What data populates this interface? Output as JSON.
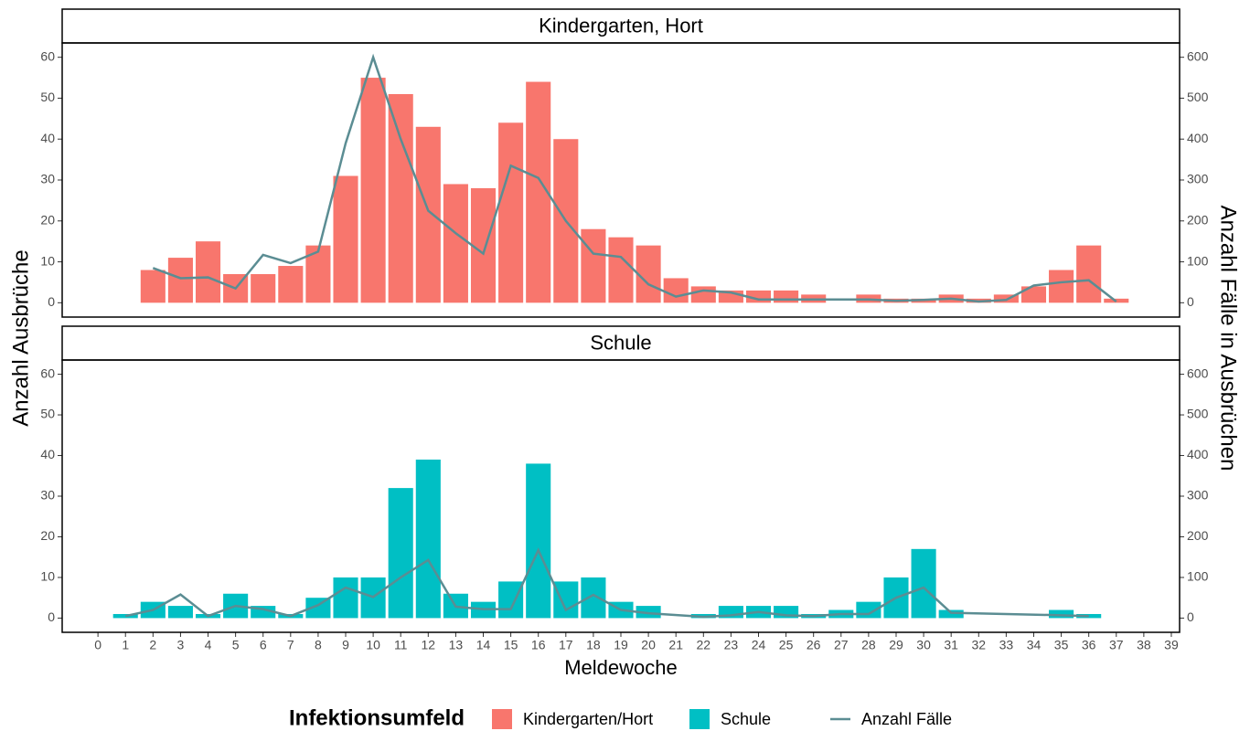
{
  "chart_data": [
    {
      "type": "bar",
      "title": "Kindergarten, Hort",
      "ylabel": "Anzahl Ausbrüche",
      "y2label": "Anzahl Fälle in Ausbrüchen",
      "xlim": [
        -1.3,
        39.3
      ],
      "ylim": [
        -3.5,
        63.5
      ],
      "y2lim": [
        -35,
        635
      ],
      "yticks": [
        0,
        10,
        20,
        30,
        40,
        50,
        60
      ],
      "y2ticks": [
        0,
        100,
        200,
        300,
        400,
        500,
        600
      ],
      "series": [
        {
          "name": "Kindergarten/Hort",
          "type": "bar",
          "color": "#F8766D",
          "x": [
            2,
            3,
            4,
            5,
            6,
            7,
            8,
            9,
            10,
            11,
            12,
            13,
            14,
            15,
            16,
            17,
            18,
            19,
            20,
            21,
            22,
            23,
            24,
            25,
            26,
            28,
            29,
            30,
            31,
            32,
            33,
            34,
            35,
            36,
            37
          ],
          "values": [
            8,
            11,
            15,
            7,
            7,
            9,
            14,
            31,
            55,
            51,
            43,
            29,
            28,
            44,
            54,
            40,
            18,
            16,
            14,
            6,
            4,
            3,
            3,
            3,
            2,
            2,
            1,
            1,
            2,
            1,
            2,
            4,
            8,
            14,
            1
          ]
        },
        {
          "name": "Anzahl Fälle",
          "type": "line",
          "axis": "y2",
          "color": "#5B8D93",
          "x": [
            2,
            3,
            4,
            5,
            6,
            7,
            8,
            9,
            10,
            11,
            12,
            13,
            14,
            15,
            16,
            17,
            18,
            19,
            20,
            21,
            22,
            23,
            24,
            25,
            26,
            28,
            29,
            30,
            31,
            32,
            33,
            34,
            35,
            36,
            37
          ],
          "values": [
            85,
            60,
            62,
            35,
            117,
            97,
            125,
            390,
            600,
            400,
            225,
            170,
            120,
            335,
            305,
            200,
            120,
            112,
            45,
            15,
            30,
            25,
            8,
            8,
            8,
            8,
            5,
            7,
            10,
            3,
            7,
            42,
            50,
            55,
            3
          ]
        }
      ]
    },
    {
      "type": "bar",
      "title": "Schule",
      "xlabel": "Meldewoche",
      "legend_title": "Infektionsumfeld",
      "xlim": [
        -1.3,
        39.3
      ],
      "ylim": [
        -3.5,
        63.5
      ],
      "y2lim": [
        -35,
        635
      ],
      "xticks": [
        0,
        1,
        2,
        3,
        4,
        5,
        6,
        7,
        8,
        9,
        10,
        11,
        12,
        13,
        14,
        15,
        16,
        17,
        18,
        19,
        20,
        21,
        22,
        23,
        24,
        25,
        26,
        27,
        28,
        29,
        30,
        31,
        32,
        33,
        34,
        35,
        36,
        37,
        38,
        39
      ],
      "yticks": [
        0,
        10,
        20,
        30,
        40,
        50,
        60
      ],
      "y2ticks": [
        0,
        100,
        200,
        300,
        400,
        500,
        600
      ],
      "series": [
        {
          "name": "Schule",
          "type": "bar",
          "color": "#00BFC4",
          "x": [
            1,
            2,
            3,
            4,
            5,
            6,
            7,
            8,
            9,
            10,
            11,
            12,
            13,
            14,
            15,
            16,
            17,
            18,
            19,
            20,
            22,
            23,
            24,
            25,
            26,
            27,
            28,
            29,
            30,
            31,
            35,
            36
          ],
          "values": [
            1,
            4,
            3,
            1,
            6,
            3,
            1,
            5,
            10,
            10,
            32,
            39,
            6,
            4,
            9,
            38,
            9,
            10,
            4,
            3,
            1,
            3,
            3,
            3,
            1,
            2,
            4,
            10,
            17,
            2,
            2,
            1
          ]
        },
        {
          "name": "Anzahl Fälle",
          "type": "line",
          "axis": "y2",
          "color": "#5B8D93",
          "x": [
            1,
            2,
            3,
            4,
            5,
            6,
            7,
            8,
            9,
            10,
            11,
            12,
            13,
            14,
            15,
            16,
            17,
            18,
            19,
            20,
            22,
            23,
            24,
            25,
            26,
            27,
            28,
            29,
            30,
            31,
            35,
            36
          ],
          "values": [
            5,
            20,
            58,
            5,
            30,
            22,
            5,
            32,
            75,
            52,
            100,
            143,
            28,
            22,
            22,
            167,
            20,
            57,
            20,
            12,
            3,
            7,
            15,
            7,
            5,
            10,
            10,
            50,
            75,
            13,
            7,
            5
          ]
        }
      ]
    }
  ]
}
